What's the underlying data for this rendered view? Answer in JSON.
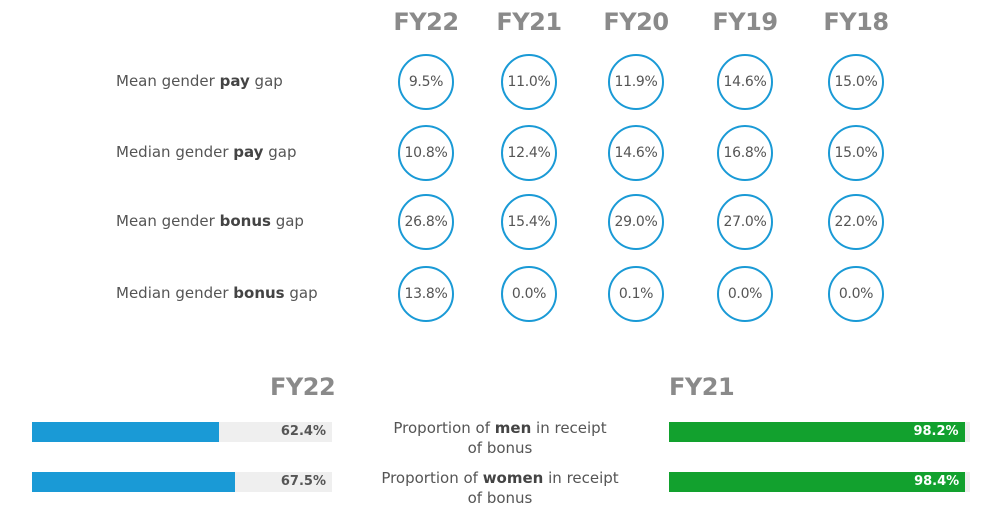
{
  "chart_data": [
    {
      "type": "table",
      "columns": [
        "FY22",
        "FY21",
        "FY20",
        "FY19",
        "FY18"
      ],
      "rows": [
        {
          "label_pre": "Mean gender ",
          "label_bold": "pay",
          "label_post": " gap",
          "values": [
            "9.5%",
            "11.0%",
            "11.9%",
            "14.6%",
            "15.0%"
          ]
        },
        {
          "label_pre": "Median gender ",
          "label_bold": "pay",
          "label_post": " gap",
          "values": [
            "10.8%",
            "12.4%",
            "14.6%",
            "16.8%",
            "15.0%"
          ]
        },
        {
          "label_pre": "Mean gender ",
          "label_bold": "bonus",
          "label_post": " gap",
          "values": [
            "26.8%",
            "15.4%",
            "29.0%",
            "27.0%",
            "22.0%"
          ]
        },
        {
          "label_pre": "Median gender ",
          "label_bold": "bonus",
          "label_post": " gap",
          "values": [
            "13.8%",
            "0.0%",
            "0.1%",
            "0.0%",
            "0.0%"
          ]
        }
      ],
      "circle_color": "#1a9ad6"
    },
    {
      "type": "bar",
      "categories": [
        {
          "pre": "Proportion of ",
          "bold": "men",
          "post": "  in receipt",
          "line2": "of bonus"
        },
        {
          "pre": "Proportion of ",
          "bold": "women",
          "post": " in receipt",
          "line2": "of bonus"
        }
      ],
      "series": [
        {
          "name": "FY22",
          "values": [
            62.4,
            67.5
          ],
          "labels": [
            "62.4%",
            "67.5%"
          ],
          "color": "#1a9ad6"
        },
        {
          "name": "FY21",
          "values": [
            98.2,
            98.4
          ],
          "labels": [
            "98.2%",
            "98.4%"
          ],
          "color": "#12a12e"
        }
      ],
      "ylim": [
        0,
        100
      ]
    }
  ]
}
